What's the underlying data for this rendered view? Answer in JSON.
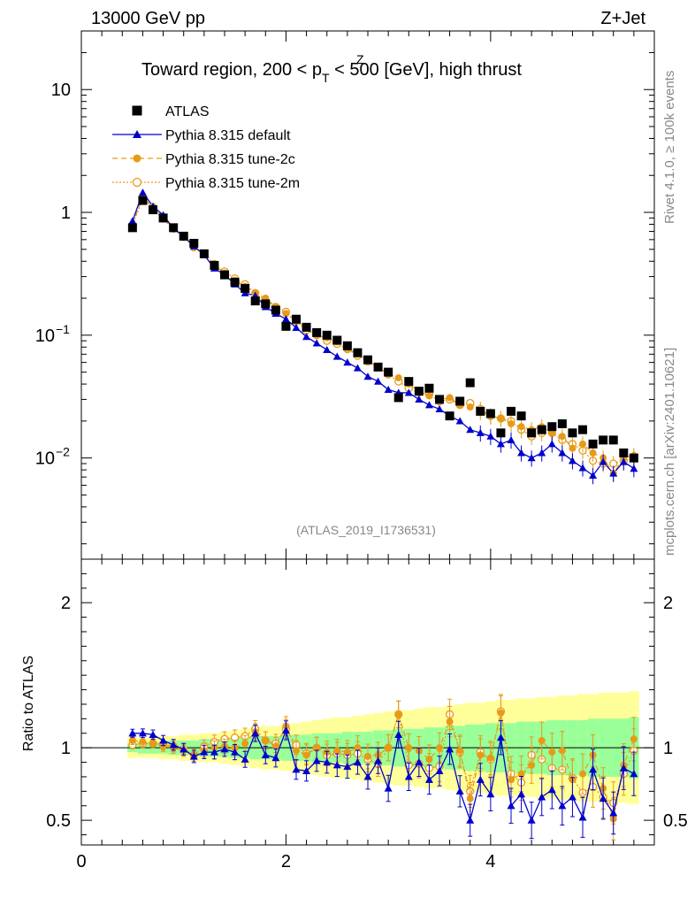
{
  "header": {
    "left": "13000 GeV pp",
    "right": "Z+Jet",
    "title_pre": "Toward region, 200 < p",
    "title_sup": "Z",
    "title_sub": "T",
    "title_post": " < 500 [GeV], high thrust"
  },
  "side": {
    "rivet": "Rivet 4.1.0, ≥ 100k events",
    "mcplots": "mcplots.cern.ch [arXiv:2401.10621]"
  },
  "analysis_label": "(ATLAS_2019_I1736531)",
  "colors": {
    "atlas": "#000000",
    "default": "#0000cc",
    "tune2c": "#e69a1a",
    "tune2m": "#e69a1a",
    "band_yellow": "#ffff99",
    "band_green": "#99ff99"
  },
  "chart_data": [
    {
      "type": "scatter",
      "panel": "main",
      "yscale": "log",
      "xlim": [
        0,
        5.6
      ],
      "ylim": [
        0.0015,
        30
      ],
      "y_ticks": [
        {
          "value": 10,
          "label": "10"
        },
        {
          "value": 1,
          "label": "1"
        },
        {
          "value": 0.1,
          "label": "10",
          "exp": "−1"
        },
        {
          "value": 0.01,
          "label": "10",
          "exp": "−2"
        }
      ],
      "legend": [
        {
          "key": "atlas",
          "label": "ATLAS"
        },
        {
          "key": "default",
          "label": "Pythia 8.315 default"
        },
        {
          "key": "tune2c",
          "label": "Pythia 8.315 tune-2c"
        },
        {
          "key": "tune2m",
          "label": "Pythia 8.315 tune-2m"
        }
      ],
      "x": [
        0.5,
        0.6,
        0.7,
        0.8,
        0.9,
        1.0,
        1.1,
        1.2,
        1.3,
        1.4,
        1.5,
        1.6,
        1.7,
        1.8,
        1.9,
        2.0,
        2.1,
        2.2,
        2.3,
        2.4,
        2.5,
        2.6,
        2.7,
        2.8,
        2.9,
        3.0,
        3.1,
        3.2,
        3.3,
        3.4,
        3.5,
        3.6,
        3.7,
        3.8,
        3.9,
        4.0,
        4.1,
        4.2,
        4.3,
        4.4,
        4.5,
        4.6,
        4.7,
        4.8,
        4.9,
        5.0,
        5.1,
        5.2,
        5.3,
        5.4
      ],
      "series": [
        {
          "key": "atlas",
          "name": "ATLAS",
          "values": [
            0.75,
            1.25,
            1.05,
            0.9,
            0.75,
            0.64,
            0.56,
            0.46,
            0.37,
            0.31,
            0.27,
            0.24,
            0.19,
            0.18,
            0.16,
            0.118,
            0.135,
            0.116,
            0.105,
            0.1,
            0.091,
            0.082,
            0.072,
            0.063,
            0.055,
            0.05,
            0.031,
            0.042,
            0.035,
            0.037,
            0.03,
            0.022,
            0.029,
            0.041,
            0.024,
            0.023,
            0.016,
            0.024,
            0.022,
            0.016,
            0.017,
            0.018,
            0.019,
            0.016,
            0.017,
            0.013,
            0.014,
            0.014,
            0.011,
            0.01
          ]
        },
        {
          "key": "default",
          "name": "Pythia 8.315 default",
          "values": [
            0.85,
            1.45,
            1.12,
            0.95,
            0.74,
            0.64,
            0.53,
            0.45,
            0.35,
            0.31,
            0.26,
            0.22,
            0.21,
            0.17,
            0.15,
            0.135,
            0.115,
            0.097,
            0.086,
            0.076,
            0.067,
            0.06,
            0.054,
            0.046,
            0.042,
            0.036,
            0.034,
            0.034,
            0.03,
            0.027,
            0.025,
            0.022,
            0.02,
            0.017,
            0.016,
            0.015,
            0.013,
            0.014,
            0.011,
            0.01,
            0.011,
            0.013,
            0.011,
            0.0095,
            0.0083,
            0.0072,
            0.0093,
            0.0075,
            0.0093,
            0.0082
          ]
        },
        {
          "key": "tune2c",
          "name": "Pythia 8.315 tune-2c",
          "values": [
            0.8,
            1.35,
            1.08,
            0.88,
            0.73,
            0.64,
            0.52,
            0.46,
            0.37,
            0.32,
            0.28,
            0.25,
            0.22,
            0.2,
            0.17,
            0.15,
            0.13,
            0.115,
            0.1,
            0.095,
            0.088,
            0.078,
            0.07,
            0.062,
            0.055,
            0.048,
            0.045,
            0.04,
            0.035,
            0.032,
            0.03,
            0.031,
            0.027,
            0.026,
            0.024,
            0.022,
            0.021,
            0.019,
            0.018,
            0.017,
            0.018,
            0.016,
            0.015,
            0.012,
            0.013,
            0.011,
            0.01,
            0.0075,
            0.01,
            0.0105
          ]
        },
        {
          "key": "tune2m",
          "name": "Pythia 8.315 tune-2m",
          "values": [
            0.78,
            1.3,
            1.1,
            0.9,
            0.74,
            0.63,
            0.52,
            0.46,
            0.38,
            0.33,
            0.29,
            0.26,
            0.22,
            0.19,
            0.17,
            0.155,
            0.13,
            0.11,
            0.1,
            0.09,
            0.085,
            0.077,
            0.068,
            0.061,
            0.055,
            0.048,
            0.042,
            0.037,
            0.034,
            0.033,
            0.029,
            0.03,
            0.027,
            0.028,
            0.025,
            0.022,
            0.021,
            0.02,
            0.017,
            0.015,
            0.016,
            0.016,
            0.014,
            0.013,
            0.0115,
            0.0095,
            0.009,
            0.009,
            0.0095,
            0.01
          ]
        }
      ]
    },
    {
      "type": "scatter",
      "panel": "ratio",
      "ylabel": "Ratio to ATLAS",
      "xlim": [
        0,
        5.6
      ],
      "ylim": [
        0.33,
        2.3
      ],
      "x_ticks": [
        {
          "value": 0,
          "label": "0"
        },
        {
          "value": 2,
          "label": "2"
        },
        {
          "value": 4,
          "label": "4"
        }
      ],
      "y_ticks": [
        {
          "value": 0.5,
          "label": "0.5"
        },
        {
          "value": 1,
          "label": "1"
        },
        {
          "value": 2,
          "label": "2"
        }
      ],
      "x": [
        0.5,
        0.6,
        0.7,
        0.8,
        0.9,
        1.0,
        1.1,
        1.2,
        1.3,
        1.4,
        1.5,
        1.6,
        1.7,
        1.8,
        1.9,
        2.0,
        2.1,
        2.2,
        2.3,
        2.4,
        2.5,
        2.6,
        2.7,
        2.8,
        2.9,
        3.0,
        3.1,
        3.2,
        3.3,
        3.4,
        3.5,
        3.6,
        3.7,
        3.8,
        3.9,
        4.0,
        4.1,
        4.2,
        4.3,
        4.4,
        4.5,
        4.6,
        4.7,
        4.8,
        4.9,
        5.0,
        5.1,
        5.2,
        5.3,
        5.4
      ],
      "band_green": [
        0.03,
        0.04,
        0.04,
        0.04,
        0.05,
        0.05,
        0.05,
        0.06,
        0.06,
        0.06,
        0.07,
        0.07,
        0.08,
        0.08,
        0.08,
        0.09,
        0.09,
        0.09,
        0.1,
        0.1,
        0.1,
        0.11,
        0.11,
        0.11,
        0.12,
        0.12,
        0.13,
        0.13,
        0.13,
        0.14,
        0.14,
        0.15,
        0.15,
        0.16,
        0.16,
        0.17,
        0.17,
        0.17,
        0.18,
        0.18,
        0.18,
        0.19,
        0.19,
        0.19,
        0.19,
        0.2,
        0.2,
        0.2,
        0.2,
        0.21
      ],
      "band_yellow": [
        0.07,
        0.07,
        0.07,
        0.08,
        0.08,
        0.09,
        0.09,
        0.1,
        0.1,
        0.11,
        0.12,
        0.13,
        0.14,
        0.15,
        0.15,
        0.16,
        0.17,
        0.18,
        0.19,
        0.2,
        0.21,
        0.21,
        0.22,
        0.23,
        0.24,
        0.25,
        0.26,
        0.26,
        0.27,
        0.28,
        0.28,
        0.29,
        0.3,
        0.31,
        0.31,
        0.32,
        0.33,
        0.33,
        0.34,
        0.34,
        0.35,
        0.35,
        0.36,
        0.36,
        0.37,
        0.37,
        0.38,
        0.38,
        0.38,
        0.39
      ],
      "series": [
        {
          "key": "default",
          "name": "Pythia 8.315 default",
          "values": [
            1.1,
            1.1,
            1.09,
            1.05,
            1.02,
            0.99,
            0.94,
            0.97,
            0.97,
            0.99,
            0.97,
            0.92,
            1.1,
            0.95,
            0.93,
            1.12,
            0.85,
            0.84,
            0.91,
            0.9,
            0.88,
            0.87,
            0.9,
            0.8,
            0.91,
            0.72,
            1.09,
            0.8,
            0.9,
            0.78,
            0.84,
            0.99,
            0.7,
            0.5,
            0.78,
            0.68,
            1.07,
            0.6,
            0.68,
            0.5,
            0.66,
            0.71,
            0.6,
            0.66,
            0.52,
            0.85,
            0.65,
            0.55,
            0.86,
            0.82
          ]
        },
        {
          "key": "tune2c",
          "name": "Pythia 8.315 tune-2c",
          "values": [
            1.05,
            1.04,
            1.03,
            1.01,
            1.0,
            0.98,
            0.95,
            0.98,
            1.0,
            1.01,
            1.0,
            1.03,
            1.11,
            1.05,
            1.01,
            1.15,
            0.98,
            0.95,
            1.0,
            0.97,
            0.98,
            0.97,
            1.0,
            0.94,
            0.95,
            1.0,
            1.23,
            1.0,
            0.98,
            0.92,
            1.0,
            1.18,
            0.98,
            0.65,
            0.95,
            0.93,
            1.24,
            0.78,
            0.82,
            0.88,
            1.05,
            0.97,
            0.98,
            0.78,
            0.82,
            0.95,
            0.72,
            0.51,
            0.88,
            1.06
          ]
        },
        {
          "key": "tune2m",
          "name": "Pythia 8.315 tune-2m",
          "values": [
            1.02,
            1.03,
            1.03,
            1.02,
            1.01,
            0.99,
            0.95,
            1.01,
            1.04,
            1.06,
            1.07,
            1.08,
            1.13,
            1.05,
            1.03,
            1.13,
            1.02,
            0.96,
            1.0,
            0.95,
            0.96,
            0.95,
            0.96,
            0.92,
            0.89,
            1.0,
            1.23,
            0.88,
            0.89,
            0.86,
            0.87,
            1.23,
            0.97,
            0.7,
            0.97,
            0.92,
            1.25,
            0.82,
            0.76,
            0.95,
            0.92,
            0.86,
            0.85,
            0.79,
            0.69,
            0.73,
            0.66,
            0.62,
            0.82,
            0.98
          ]
        }
      ]
    }
  ]
}
